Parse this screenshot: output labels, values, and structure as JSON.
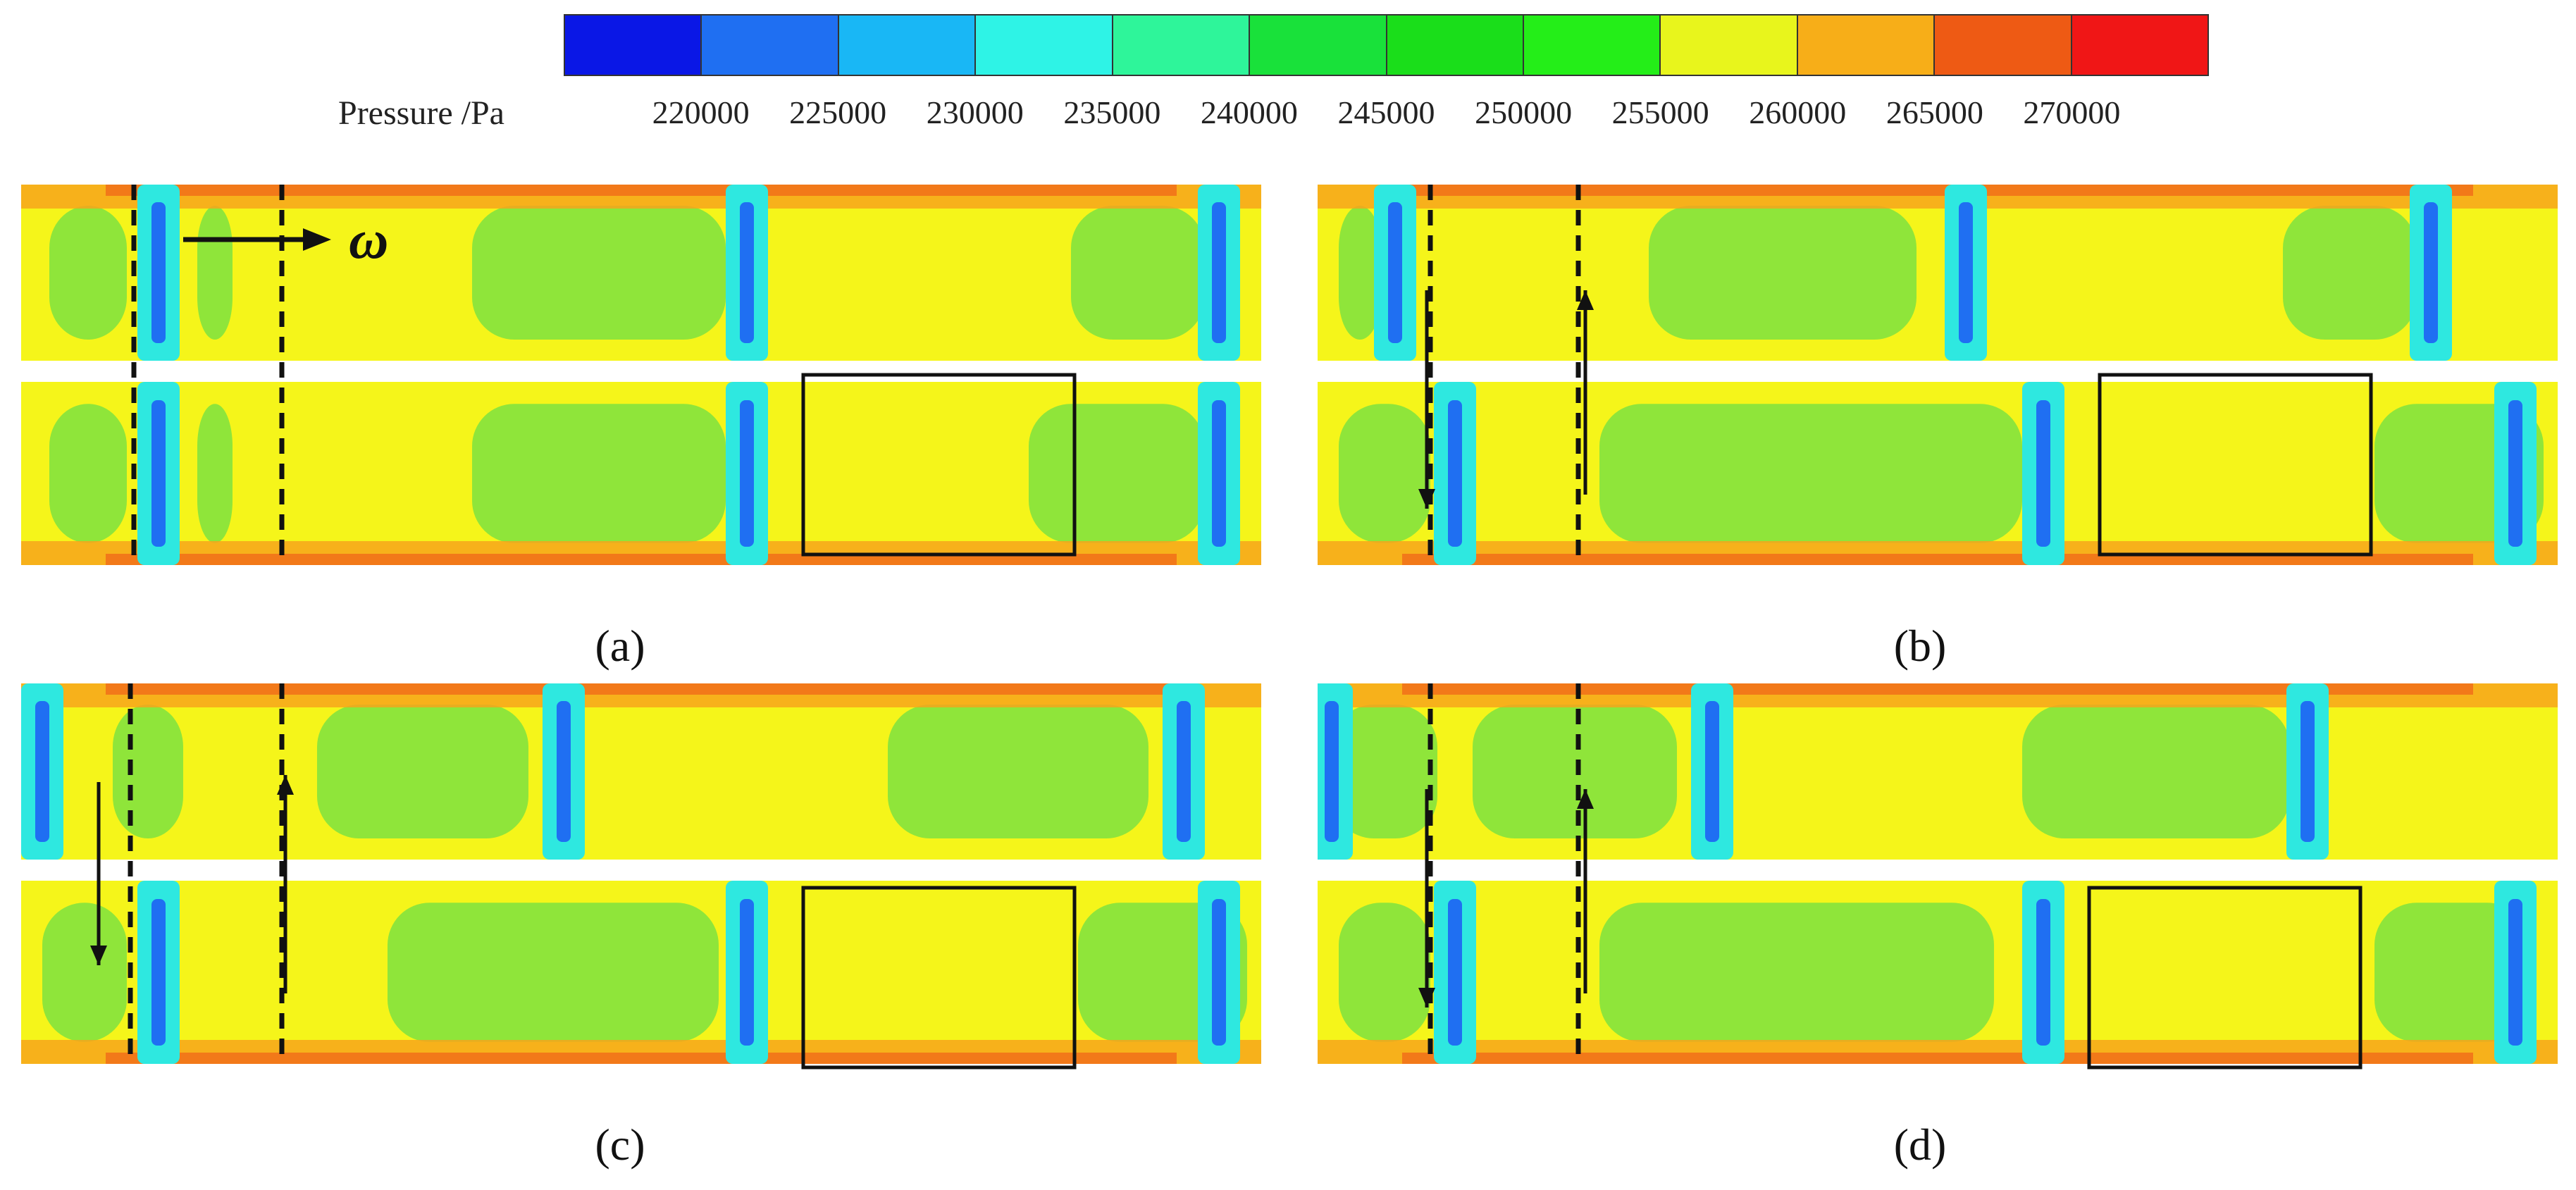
{
  "legend": {
    "title": "Pressure /Pa",
    "ticks": [
      "220000",
      "225000",
      "230000",
      "235000",
      "240000",
      "245000",
      "250000",
      "255000",
      "260000",
      "265000",
      "270000"
    ],
    "colors": [
      "#0a17e6",
      "#1f6ff2",
      "#19b7f5",
      "#2ef3e6",
      "#2ef59a",
      "#19e13a",
      "#1ade1a",
      "#24ee18",
      "#e8f51c",
      "#f7ae18",
      "#ee5a14",
      "#f01616"
    ]
  },
  "annotations": {
    "omega_label": "ω"
  },
  "panels": [
    {
      "id": "a",
      "caption": "(a)"
    },
    {
      "id": "b",
      "caption": "(b)"
    },
    {
      "id": "c",
      "caption": "(c)"
    },
    {
      "id": "d",
      "caption": "(d)"
    }
  ],
  "palette": {
    "green": "#8fe53a",
    "yellow": "#f5f51a",
    "orange": "#f7a51c",
    "red": "#ee4a18",
    "cyan": "#2ee8e0",
    "blue": "#1f6ff2"
  }
}
